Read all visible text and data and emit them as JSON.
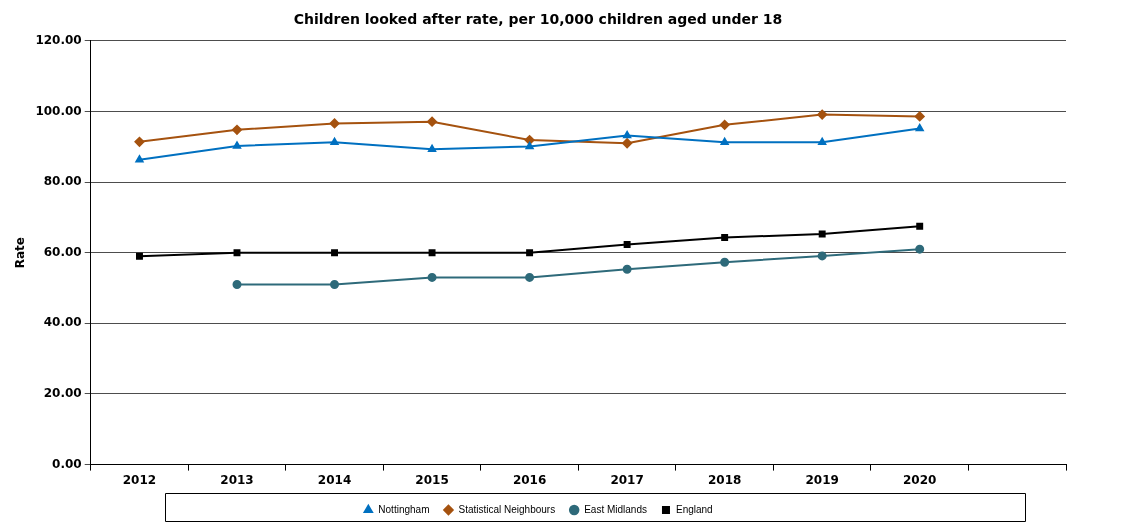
{
  "chart_data": {
    "type": "line",
    "title": "Children looked after rate, per 10,000 children aged under 18",
    "ylabel": "Rate",
    "categories": [
      "2012",
      "2013",
      "2014",
      "2015",
      "2016",
      "2017",
      "2018",
      "2019",
      "2020",
      null
    ],
    "series": [
      {
        "name": "Nottingham",
        "color": "#0070c0",
        "marker": "triangle",
        "values": [
          86.3,
          90.2,
          91.3,
          89.3,
          90.1,
          93.2,
          91.3,
          91.3,
          95.2,
          null
        ]
      },
      {
        "name": "Statistical Neighbours",
        "color": "#a5520f",
        "marker": "diamond",
        "values": [
          91.4,
          94.8,
          96.6,
          97.1,
          91.9,
          91.0,
          96.2,
          99.1,
          98.6,
          null
        ]
      },
      {
        "name": "East Midlands",
        "color": "#2e6a7a",
        "marker": "circle",
        "values": [
          null,
          51,
          51,
          53,
          53,
          55.3,
          57.3,
          59.1,
          61,
          null
        ]
      },
      {
        "name": "England",
        "color": "#000000",
        "marker": "square",
        "values": [
          59,
          60,
          60,
          60,
          60,
          62.3,
          64.3,
          65.3,
          67.5,
          null
        ]
      }
    ],
    "ylim": [
      0,
      120
    ],
    "yticks": [
      {
        "value": 0,
        "label": "0.00"
      },
      {
        "value": 20,
        "label": "20.00"
      },
      {
        "value": 40,
        "label": "40.00"
      },
      {
        "value": 60,
        "label": "60.00"
      },
      {
        "value": 80,
        "label": "80.00"
      },
      {
        "value": 100,
        "label": "100.00"
      },
      {
        "value": 120,
        "label": "120.00"
      }
    ],
    "grid": "y",
    "legend": "bottom",
    "line_style": "solid"
  }
}
